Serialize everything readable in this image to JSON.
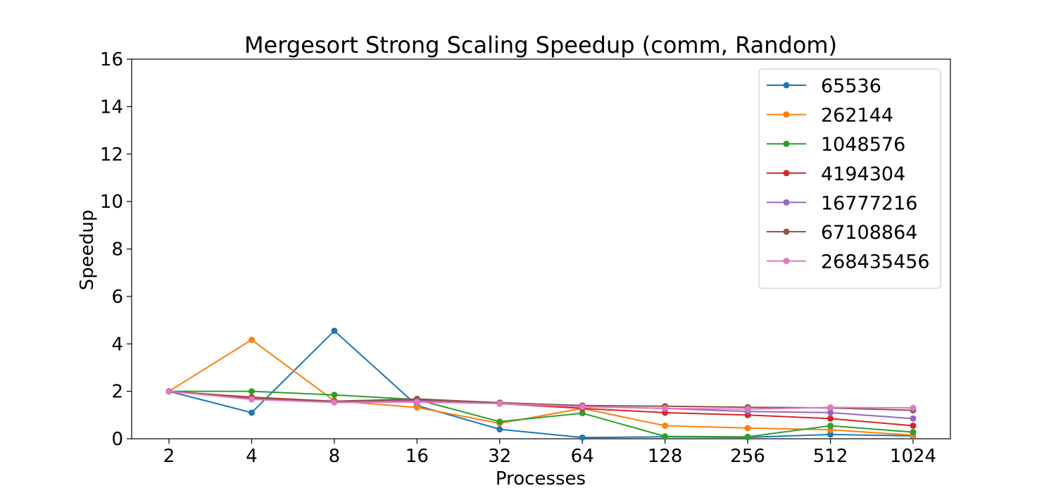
{
  "chart_data": {
    "type": "line",
    "title": "Mergesort Strong Scaling Speedup (comm, Random)",
    "xlabel": "Processes",
    "ylabel": "Speedup",
    "categories": [
      "2",
      "4",
      "8",
      "16",
      "32",
      "64",
      "128",
      "256",
      "512",
      "1024"
    ],
    "ylim": [
      0,
      16
    ],
    "yticks": [
      0,
      2,
      4,
      6,
      8,
      10,
      12,
      14,
      16
    ],
    "grid": false,
    "legend_position": "upper-right",
    "series": [
      {
        "name": "65536",
        "color": "#1f77b4",
        "values": [
          2.0,
          1.1,
          4.55,
          1.4,
          0.4,
          0.05,
          0.08,
          0.06,
          0.18,
          0.12
        ]
      },
      {
        "name": "262144",
        "color": "#ff7f0e",
        "values": [
          2.0,
          4.17,
          1.6,
          1.32,
          0.65,
          1.28,
          0.55,
          0.45,
          0.38,
          0.15
        ]
      },
      {
        "name": "1048576",
        "color": "#2ca02c",
        "values": [
          2.0,
          2.0,
          1.85,
          1.65,
          0.72,
          1.08,
          0.1,
          0.08,
          0.55,
          0.28
        ]
      },
      {
        "name": "4194304",
        "color": "#d62728",
        "values": [
          2.0,
          1.75,
          1.58,
          1.65,
          1.48,
          1.28,
          1.1,
          1.0,
          0.85,
          0.55
        ]
      },
      {
        "name": "16777216",
        "color": "#9467bd",
        "values": [
          2.0,
          1.68,
          1.55,
          1.6,
          1.5,
          1.35,
          1.28,
          1.15,
          1.1,
          0.85
        ]
      },
      {
        "name": "67108864",
        "color": "#8c564b",
        "values": [
          2.0,
          1.72,
          1.58,
          1.68,
          1.52,
          1.4,
          1.37,
          1.33,
          1.3,
          1.2
        ]
      },
      {
        "name": "268435456",
        "color": "#e377c2",
        "values": [
          2.0,
          1.66,
          1.53,
          1.55,
          1.48,
          1.35,
          1.28,
          1.25,
          1.32,
          1.3
        ]
      }
    ]
  }
}
